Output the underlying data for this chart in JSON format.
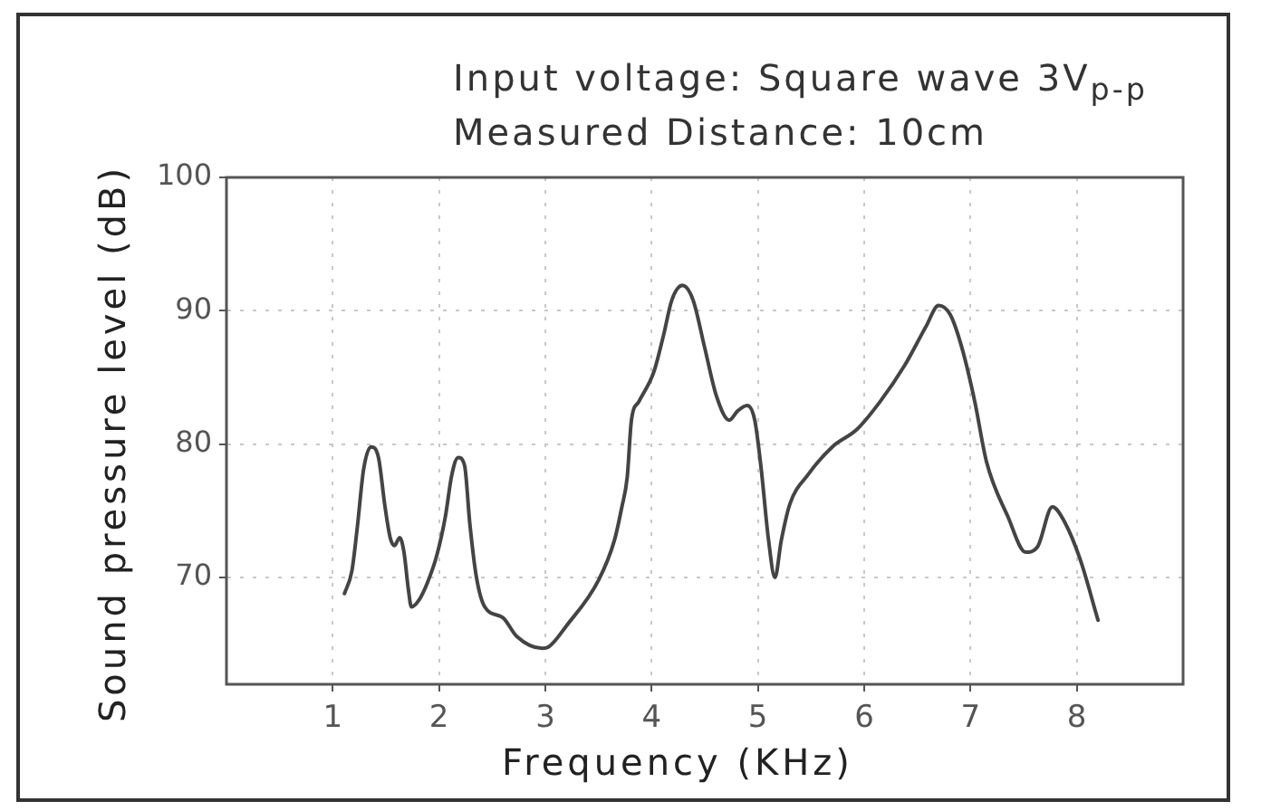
{
  "chart_data": {
    "type": "line",
    "title": "Input voltage: Square wave 3V$_{p-p}$",
    "subtitle": "Measured Distance: 10cm",
    "xlabel": "Frequency (KHz)",
    "ylabel": "Sound pressure level (dB)",
    "x": [
      1.11,
      1.18,
      1.23,
      1.29,
      1.36,
      1.43,
      1.49,
      1.54,
      1.58,
      1.63,
      1.67,
      1.71,
      1.74,
      1.81,
      1.89,
      1.98,
      2.06,
      2.12,
      2.18,
      2.24,
      2.29,
      2.35,
      2.43,
      2.6,
      2.73,
      2.97,
      3.03,
      3.2,
      3.5,
      3.65,
      3.72,
      3.77,
      3.81,
      3.88,
      4.02,
      4.11,
      4.19,
      4.29,
      4.39,
      4.5,
      4.61,
      4.73,
      4.81,
      4.9,
      4.97,
      5.03,
      5.1,
      5.16,
      5.22,
      5.3,
      5.47,
      5.7,
      5.93,
      6.15,
      6.38,
      6.58,
      6.7,
      6.81,
      6.92,
      7.04,
      7.15,
      7.35,
      7.52,
      7.63,
      7.77,
      7.89,
      8.03,
      8.2
    ],
    "values": [
      68.8,
      70.5,
      73.7,
      78.1,
      79.8,
      79.0,
      75.4,
      73.0,
      72.4,
      73.0,
      71.9,
      69.2,
      67.8,
      68.3,
      69.6,
      71.7,
      74.6,
      77.7,
      79.0,
      78.4,
      74.0,
      70.1,
      67.8,
      67.0,
      65.6,
      64.7,
      64.8,
      66.4,
      69.8,
      72.8,
      75.3,
      77.5,
      81.8,
      83.2,
      85.4,
      88.1,
      90.8,
      91.9,
      90.8,
      87.2,
      83.6,
      81.8,
      82.5,
      82.9,
      81.8,
      78.2,
      72.8,
      70.0,
      72.8,
      75.5,
      77.7,
      79.8,
      81.1,
      83.2,
      85.9,
      88.8,
      90.4,
      89.7,
      87.2,
      83.2,
      78.7,
      74.6,
      71.9,
      72.3,
      75.3,
      74.1,
      71.4,
      66.8
    ],
    "color": "#444444",
    "xlim": [
      0,
      9
    ],
    "xticks": [
      1,
      2,
      3,
      4,
      5,
      6,
      7,
      8
    ],
    "ylim": [
      62,
      100
    ],
    "yticks": [
      70,
      80,
      90,
      100
    ],
    "grid": true
  }
}
